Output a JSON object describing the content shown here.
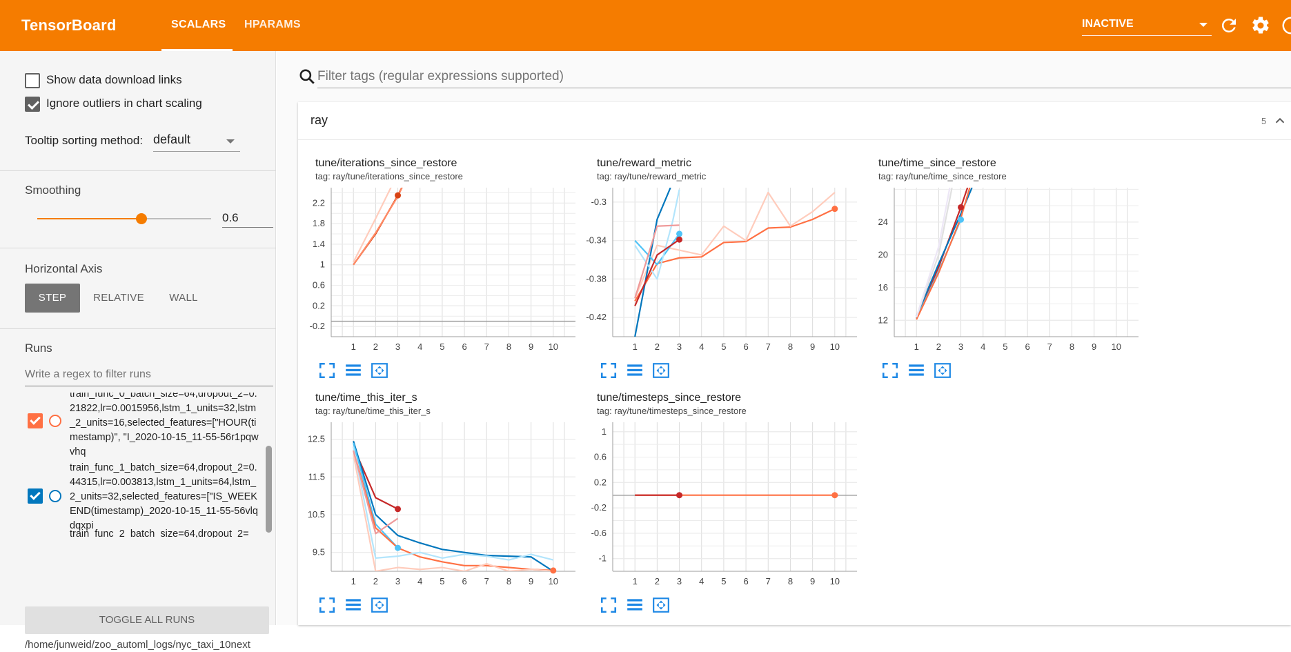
{
  "app": {
    "title": "TensorBoard",
    "tabs": [
      {
        "label": "SCALARS",
        "active": true
      },
      {
        "label": "HPARAMS",
        "active": false
      }
    ],
    "status_select": "INACTIVE",
    "accent": "#f57c00"
  },
  "sidebar": {
    "show_download_label": "Show data download links",
    "show_download_checked": false,
    "ignore_outliers_label": "Ignore outliers in chart scaling",
    "ignore_outliers_checked": true,
    "tooltip_sort_label": "Tooltip sorting method:",
    "tooltip_sort_value": "default",
    "smoothing_label": "Smoothing",
    "smoothing_value": "0.6",
    "smoothing_fraction": 0.6,
    "horizontal_axis_label": "Horizontal Axis",
    "axis_options": [
      "STEP",
      "RELATIVE",
      "WALL"
    ],
    "axis_selected": "STEP",
    "runs_label": "Runs",
    "runs_filter_placeholder": "Write a regex to filter runs",
    "runs": [
      {
        "label": "train_func_0_batch_size=64,dropout_2=0.21822,lr=0.0015956,lstm_1_units=32,lstm_2_units=16,selected_features=[\"HOUR(timestamp)\", \"I_2020-10-15_11-55-56r1pqwvhq",
        "color": "#ff7043",
        "checked": true
      },
      {
        "label": "train_func_1_batch_size=64,dropout_2=0.44315,lr=0.003813,lstm_1_units=64,lstm_2_units=32,selected_features=[\"IS_WEEKEND(timestamp)_2020-10-15_11-55-56vlqdqxpi",
        "color": "#0277bd",
        "checked": true
      },
      {
        "label": "train_func_2_batch_size=64,dropout_2=",
        "color": "#d32f2f",
        "checked": true
      }
    ],
    "toggle_all_label": "TOGGLE ALL RUNS",
    "logdir": "/home/junweid/zoo_automl_logs/nyc_taxi_10next"
  },
  "main": {
    "filter_placeholder": "Filter tags (regular expressions supported)",
    "group_title": "ray",
    "group_count": "5"
  },
  "chart_data": [
    {
      "type": "line",
      "title": "tune/iterations_since_restore",
      "tag": "tag: ray/tune/iterations_since_restore",
      "x_ticks": [
        "1",
        "2",
        "3",
        "4",
        "5",
        "6",
        "7",
        "8",
        "9",
        "10"
      ],
      "y_ticks": [
        "2.2",
        "1.8",
        "1.4",
        "1",
        "0.6",
        "0.2",
        "-0.2"
      ],
      "xlim": [
        0,
        11
      ],
      "ylim": [
        -0.4,
        2.5
      ],
      "series": [
        {
          "color": "#d84315",
          "x": [
            1,
            2,
            3,
            3.3
          ],
          "y": [
            1.0,
            1.6,
            2.35,
            2.6
          ],
          "marker": 3
        },
        {
          "color": "#ff8a65",
          "x": [
            1,
            2,
            3,
            3.3
          ],
          "y": [
            1.0,
            1.62,
            2.33,
            2.6
          ]
        },
        {
          "color": "#ffccbc",
          "x": [
            1,
            2,
            2.8
          ],
          "y": [
            1.05,
            1.9,
            2.6
          ]
        },
        {
          "color": "#9e9e9e",
          "x": [
            0,
            11
          ],
          "y": [
            -0.1,
            -0.1
          ]
        }
      ]
    },
    {
      "type": "line",
      "title": "tune/reward_metric",
      "tag": "tag: ray/tune/reward_metric",
      "x_ticks": [
        "1",
        "2",
        "3",
        "4",
        "5",
        "6",
        "7",
        "8",
        "9",
        "10"
      ],
      "y_ticks": [
        "-0.3",
        "-0.34",
        "-0.38",
        "-0.42"
      ],
      "xlim": [
        0,
        11
      ],
      "ylim": [
        -0.44,
        -0.285
      ],
      "series": [
        {
          "color": "#ff7043",
          "x": [
            1,
            2,
            3,
            4,
            5,
            6,
            7,
            8,
            9,
            10
          ],
          "y": [
            -0.403,
            -0.364,
            -0.358,
            -0.357,
            -0.342,
            -0.341,
            -0.327,
            -0.326,
            -0.318,
            -0.307
          ],
          "marker": 10
        },
        {
          "color": "#ffccbc",
          "x": [
            1,
            2,
            3,
            4,
            5,
            6,
            7,
            8,
            9,
            10
          ],
          "y": [
            -0.4,
            -0.345,
            -0.35,
            -0.355,
            -0.325,
            -0.34,
            -0.29,
            -0.325,
            -0.31,
            -0.29
          ]
        },
        {
          "color": "#0277bd",
          "x": [
            1,
            2,
            2.6
          ],
          "y": [
            -0.44,
            -0.318,
            -0.285
          ]
        },
        {
          "color": "#4fc3f7",
          "x": [
            1,
            2,
            3
          ],
          "y": [
            -0.34,
            -0.365,
            -0.333
          ],
          "marker": 3
        },
        {
          "color": "#b3e5fc",
          "x": [
            1,
            2,
            2.7,
            3
          ],
          "y": [
            -0.345,
            -0.38,
            -0.32,
            -0.287
          ]
        },
        {
          "color": "#c62828",
          "x": [
            1,
            2,
            3
          ],
          "y": [
            -0.408,
            -0.355,
            -0.339
          ],
          "marker": 3
        },
        {
          "color": "#ef9a9a",
          "x": [
            1,
            2,
            3
          ],
          "y": [
            -0.4,
            -0.325,
            -0.324
          ]
        }
      ]
    },
    {
      "type": "line",
      "title": "tune/time_since_restore",
      "tag": "tag: ray/tune/time_since_restore",
      "x_ticks": [
        "1",
        "2",
        "3",
        "4",
        "5",
        "6",
        "7",
        "8",
        "9",
        "10"
      ],
      "y_ticks": [
        "24",
        "20",
        "16",
        "12"
      ],
      "xlim": [
        0,
        11
      ],
      "ylim": [
        10,
        28.2
      ],
      "series": [
        {
          "color": "#c62828",
          "x": [
            1,
            2,
            3,
            3.3
          ],
          "y": [
            12.3,
            18.5,
            25.8,
            28.2
          ],
          "marker": 3
        },
        {
          "color": "#0277bd",
          "x": [
            1,
            2,
            3,
            3.5
          ],
          "y": [
            12.5,
            18.9,
            25.0,
            28.2
          ]
        },
        {
          "color": "#4fc3f7",
          "x": [
            1,
            2,
            3
          ],
          "y": [
            12.2,
            18.0,
            24.3
          ],
          "marker": 3
        },
        {
          "color": "#ff7043",
          "x": [
            1,
            2,
            3,
            3.4
          ],
          "y": [
            12.1,
            17.8,
            24.5,
            28.2
          ]
        },
        {
          "color": "#e0e0e0",
          "x": [
            1,
            2,
            2.6
          ],
          "y": [
            12.4,
            20.0,
            28.2
          ]
        },
        {
          "color": "#ede7f6",
          "x": [
            1,
            2,
            2.5
          ],
          "y": [
            12.4,
            21.0,
            28.2
          ]
        }
      ]
    },
    {
      "type": "line",
      "title": "tune/time_this_iter_s",
      "tag": "tag: ray/tune/time_this_iter_s",
      "x_ticks": [
        "1",
        "2",
        "3",
        "4",
        "5",
        "6",
        "7",
        "8",
        "9",
        "10"
      ],
      "y_ticks": [
        "12.5",
        "11.5",
        "10.5",
        "9.5"
      ],
      "xlim": [
        0,
        11
      ],
      "ylim": [
        9.0,
        12.95
      ],
      "series": [
        {
          "color": "#c62828",
          "x": [
            1,
            2,
            3
          ],
          "y": [
            12.3,
            10.95,
            10.65
          ],
          "marker": 3
        },
        {
          "color": "#0277bd",
          "x": [
            1,
            2,
            3,
            4,
            5,
            6,
            7,
            8,
            9,
            10
          ],
          "y": [
            12.45,
            10.5,
            9.95,
            9.75,
            9.58,
            9.5,
            9.42,
            9.4,
            9.38,
            9.0
          ]
        },
        {
          "color": "#4fc3f7",
          "x": [
            1,
            2,
            3
          ],
          "y": [
            12.4,
            10.25,
            9.62
          ],
          "marker": 3
        },
        {
          "color": "#ff7043",
          "x": [
            1,
            2,
            3,
            4,
            5,
            6,
            7,
            8,
            9,
            10
          ],
          "y": [
            12.2,
            10.15,
            9.62,
            9.38,
            9.25,
            9.15,
            9.15,
            9.1,
            9.05,
            9.02
          ],
          "marker": 10
        },
        {
          "color": "#ffccbc",
          "x": [
            1,
            2,
            3,
            4,
            5,
            6,
            7,
            8,
            9,
            10
          ],
          "y": [
            12.1,
            9.0,
            9.1,
            9.05,
            9.1,
            9.0,
            9.2,
            9.0,
            9.05,
            9.0
          ]
        },
        {
          "color": "#b3e5fc",
          "x": [
            1,
            2,
            3,
            4,
            5,
            6,
            7,
            8,
            9,
            10
          ],
          "y": [
            12.3,
            9.35,
            9.4,
            9.5,
            9.35,
            9.45,
            9.4,
            9.3,
            9.45,
            9.3
          ]
        },
        {
          "color": "#ef9a9a",
          "x": [
            1,
            2,
            3
          ],
          "y": [
            12.2,
            10.0,
            10.4
          ]
        }
      ]
    },
    {
      "type": "line",
      "title": "tune/timesteps_since_restore",
      "tag": "tag: ray/tune/timesteps_since_restore",
      "x_ticks": [
        "1",
        "2",
        "3",
        "4",
        "5",
        "6",
        "7",
        "8",
        "9",
        "10"
      ],
      "y_ticks": [
        "1",
        "0.6",
        "0.2",
        "-0.2",
        "-0.6",
        "-1"
      ],
      "xlim": [
        0,
        11
      ],
      "ylim": [
        -1.2,
        1.15
      ],
      "series": [
        {
          "color": "#9e9e9e",
          "x": [
            0,
            11
          ],
          "y": [
            0,
            0
          ]
        },
        {
          "color": "#ff7043",
          "x": [
            1,
            10
          ],
          "y": [
            0,
            0
          ],
          "marker": 10
        },
        {
          "color": "#c62828",
          "x": [
            1,
            3
          ],
          "y": [
            0,
            0
          ],
          "marker": 3
        }
      ]
    }
  ]
}
